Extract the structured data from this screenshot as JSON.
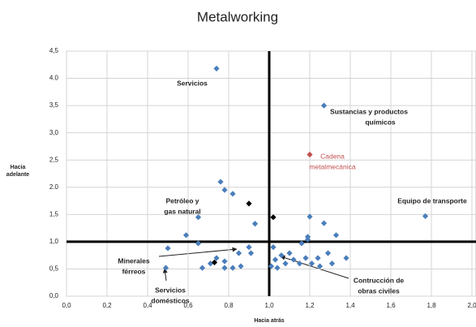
{
  "chart_data": {
    "type": "scatter",
    "title": "Metalworking",
    "x_label": "Hacia atrás",
    "y_label": [
      "Hacia",
      "adelante"
    ],
    "xlim": [
      0,
      2.0
    ],
    "ylim": [
      0,
      4.5
    ],
    "xticks": [
      {
        "value": 0,
        "label": "0,0"
      },
      {
        "value": 0.2,
        "label": "0,2"
      },
      {
        "value": 0.4,
        "label": "0,4"
      },
      {
        "value": 0.6,
        "label": "0,6"
      },
      {
        "value": 0.8,
        "label": "0,8"
      },
      {
        "value": 1.0,
        "label": "1,0"
      },
      {
        "value": 1.2,
        "label": "1,2"
      },
      {
        "value": 1.4,
        "label": "1,4"
      },
      {
        "value": 1.6,
        "label": "1,6"
      },
      {
        "value": 1.8,
        "label": "1,8"
      },
      {
        "value": 2.0,
        "label": "2,0"
      }
    ],
    "yticks": [
      {
        "value": 0,
        "label": "0,0"
      },
      {
        "value": 0.5,
        "label": "0,5"
      },
      {
        "value": 1.0,
        "label": "1,0"
      },
      {
        "value": 1.5,
        "label": "1,5"
      },
      {
        "value": 2.0,
        "label": "2.0"
      },
      {
        "value": 2.5,
        "label": "2,5"
      },
      {
        "value": 3.0,
        "label": "3,0"
      },
      {
        "value": 3.5,
        "label": "3,5"
      },
      {
        "value": 4.0,
        "label": "4.0"
      },
      {
        "value": 4.5,
        "label": "4,5"
      }
    ],
    "grid": true,
    "reference_lines": {
      "x": 1.0,
      "y": 1.0
    },
    "series": [
      {
        "color": "#4a7ebb",
        "x": [
          0.74,
          1.27,
          1.77,
          0.76,
          0.78,
          0.82,
          0.65,
          0.93,
          0.59,
          0.65,
          1.2,
          1.27,
          1.33,
          1.19,
          1.19,
          0.5,
          0.49,
          0.67,
          0.74,
          0.71,
          0.78,
          0.78,
          0.85,
          0.82,
          0.86,
          0.9,
          0.91,
          1.02,
          1.03,
          1.04,
          1.06,
          1.08,
          1.1,
          1.12,
          1.15,
          1.16,
          1.18,
          1.21,
          1.24,
          1.25,
          1.31,
          1.38,
          1.29,
          1.01
        ],
        "values": [
          4.18,
          3.5,
          1.47,
          2.1,
          1.95,
          1.88,
          1.45,
          1.33,
          1.12,
          0.97,
          1.46,
          1.34,
          1.12,
          1.09,
          1.04,
          0.88,
          0.52,
          0.52,
          0.7,
          0.6,
          0.64,
          0.52,
          0.79,
          0.52,
          0.55,
          0.9,
          0.79,
          0.9,
          0.67,
          0.52,
          0.75,
          0.6,
          0.79,
          0.67,
          0.6,
          0.97,
          0.7,
          0.6,
          0.7,
          0.55,
          0.6,
          0.7,
          0.79,
          0.55
        ]
      },
      {
        "color": "#000000",
        "x": [
          0.9,
          1.02,
          0.73
        ],
        "values": [
          1.7,
          1.45,
          0.62
        ]
      },
      {
        "color": "#c0504d",
        "x": [
          1.2
        ],
        "values": [
          2.6
        ]
      }
    ],
    "annotations": [
      {
        "lines": [
          "Servicios"
        ]
      },
      {
        "lines": [
          "Sustancias y productos",
          "químicos"
        ]
      },
      {
        "lines": [
          "Cadena",
          "metalmecánica"
        ],
        "color": "#c0504d"
      },
      {
        "lines": [
          "Equipo de transporte"
        ]
      },
      {
        "lines": [
          "Petróleo y",
          "gas natural"
        ]
      },
      {
        "lines": [
          "Minerales",
          "férreos"
        ]
      },
      {
        "lines": [
          "Servicios",
          "domésticos"
        ]
      },
      {
        "lines": [
          "Contrucción de",
          "obras civiles"
        ]
      }
    ]
  }
}
